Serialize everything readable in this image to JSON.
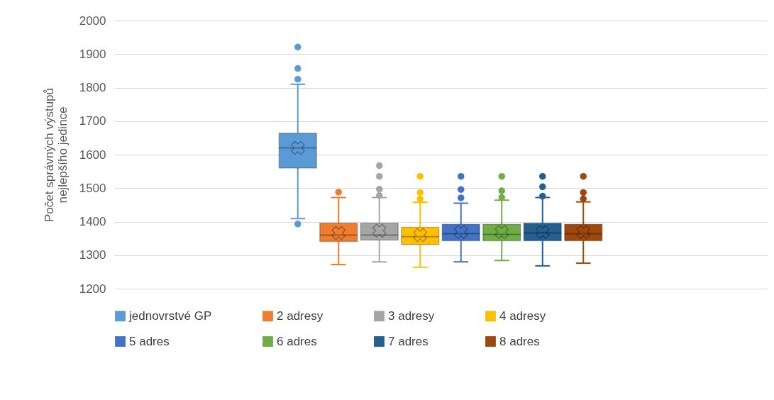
{
  "chart_data": {
    "type": "box",
    "ylabel": "Počet správných výstupů\nnejlepšího jedince",
    "categories": [
      null
    ],
    "ylim": [
      1200,
      2000
    ],
    "yticks": [
      1200,
      1300,
      1400,
      1500,
      1600,
      1700,
      1800,
      1900,
      2000
    ],
    "grid": "y",
    "legend": "bottom",
    "tick_labels": "y",
    "series": [
      {
        "name": "jednovrstvé GP",
        "color": "#5b9bd5",
        "boxes": [
          {
            "low": 1409,
            "q1": 1560,
            "median": 1620,
            "q3": 1664,
            "high": 1810,
            "mean": 1620,
            "outliers": [
              1921,
              1857,
              1825,
              1393
            ]
          }
        ]
      },
      {
        "name": "2 adresy",
        "color": "#ed7d31",
        "boxes": [
          {
            "low": 1272,
            "q1": 1341,
            "median": 1360,
            "q3": 1395,
            "high": 1472,
            "mean": 1366,
            "outliers": [
              1488
            ]
          }
        ]
      },
      {
        "name": "3 adresy",
        "color": "#a5a5a5",
        "boxes": [
          {
            "low": 1280,
            "q1": 1345,
            "median": 1360,
            "q3": 1395,
            "high": 1472,
            "mean": 1373,
            "outliers": [
              1567,
              1535,
              1497,
              1478
            ]
          }
        ]
      },
      {
        "name": "4 adresy",
        "color": "#ffc000",
        "boxes": [
          {
            "low": 1264,
            "q1": 1332,
            "median": 1355,
            "q3": 1383,
            "high": 1458,
            "mean": 1360,
            "outliers": [
              1535,
              1487,
              1468
            ]
          }
        ]
      },
      {
        "name": "5 adres",
        "color": "#4472c4",
        "boxes": [
          {
            "low": 1280,
            "q1": 1343,
            "median": 1364,
            "q3": 1392,
            "high": 1455,
            "mean": 1369,
            "outliers": [
              1535,
              1496,
              1471
            ]
          }
        ]
      },
      {
        "name": "6 adres",
        "color": "#70ad47",
        "boxes": [
          {
            "low": 1284,
            "q1": 1343,
            "median": 1362,
            "q3": 1392,
            "high": 1464,
            "mean": 1369,
            "outliers": [
              1535,
              1492,
              1472
            ]
          }
        ]
      },
      {
        "name": "7 adres",
        "color": "#255e91",
        "boxes": [
          {
            "low": 1268,
            "q1": 1343,
            "median": 1366,
            "q3": 1395,
            "high": 1472,
            "mean": 1369,
            "outliers": [
              1535,
              1504,
              1476
            ]
          }
        ]
      },
      {
        "name": "8 adres",
        "color": "#9e480e",
        "boxes": [
          {
            "low": 1276,
            "q1": 1343,
            "median": 1364,
            "q3": 1392,
            "high": 1459,
            "mean": 1369,
            "outliers": [
              1535,
              1487,
              1468
            ]
          }
        ]
      }
    ]
  }
}
